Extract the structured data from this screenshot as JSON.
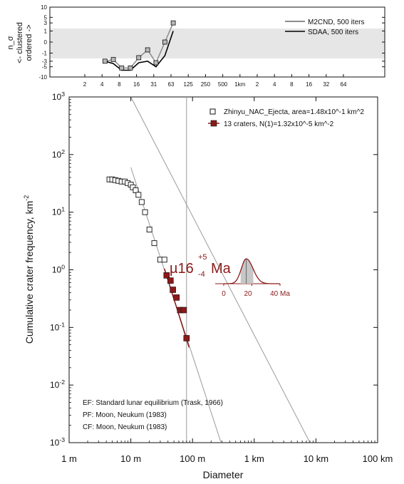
{
  "chart_data": [
    {
      "panel": "randomness",
      "type": "line",
      "ylabel": "n_σ\n<- clustered\nordered ->",
      "y_ticks": [
        "10",
        "5",
        "3",
        "1",
        "0",
        "-1",
        "-3",
        "-5",
        "-10"
      ],
      "x_ticks": [
        "2",
        "4",
        "8",
        "16",
        "31",
        "63",
        "125",
        "250",
        "500",
        "1km",
        "2",
        "4",
        "8",
        "16",
        "32",
        "64"
      ],
      "legend": [
        "M2CND, 500 iters",
        "SDAA, 500 iters"
      ],
      "series": [
        {
          "name": "M2CND, 500 iters",
          "diameters_m": [
            4.5,
            6.3,
            8.8,
            12.5,
            17.5,
            25,
            35,
            50,
            70
          ],
          "values": [
            -3.0,
            -2.5,
            -5.5,
            -5.5,
            -2.0,
            -0.5,
            -3.5,
            0,
            3.0
          ]
        },
        {
          "name": "SDAA, 500 iters",
          "diameters_m": [
            4.5,
            6.3,
            8.8,
            12.5,
            17.5,
            25,
            35,
            50,
            70
          ],
          "values": [
            -3.0,
            -3.8,
            -6.5,
            -6.5,
            -3.5,
            -3.0,
            -5.0,
            -1.5,
            1.0
          ]
        }
      ]
    },
    {
      "panel": "csfd",
      "type": "scatter",
      "xlabel": "Diameter",
      "ylabel": "Cumulative crater frequency, km-2",
      "xscale": "log",
      "yscale": "log",
      "x_ticks": [
        "1 m",
        "10 m",
        "100 m",
        "1 km",
        "10 km",
        "100 km"
      ],
      "y_ticks": [
        "10^3",
        "10^2",
        "10^1",
        "10^0",
        "10^-1",
        "10^-2",
        "10^-3"
      ],
      "xlim_m": [
        1,
        100000
      ],
      "ylim": [
        0.001,
        1000
      ],
      "legend": [
        "Zhinyu_NAC_Ejecta, area=1.48x10^-1 km^2",
        "13 craters, N(1)=1.32x10^-5 km^-2"
      ],
      "series": [
        {
          "name": "Zhinyu_NAC_Ejecta, area=1.48x10^-1 km^2",
          "marker": "open-square",
          "diameters_m": [
            4.5,
            5.0,
            5.6,
            6.3,
            7.1,
            8.0,
            8.9,
            10.0,
            10.8,
            12.0,
            13.3,
            15.0,
            17.0,
            20.0,
            24.0,
            30.0,
            35.0
          ],
          "frequency": [
            37,
            37,
            36,
            35,
            34,
            34,
            32,
            30,
            27,
            24,
            20,
            15,
            10,
            5,
            2.9,
            1.5,
            1.5
          ]
        },
        {
          "name": "13 craters, N(1)=1.32x10^-5 km^-2",
          "marker": "filled-square",
          "diameters_m": [
            38,
            44,
            48,
            55,
            63,
            72,
            80
          ],
          "frequency": [
            0.8,
            0.65,
            0.45,
            0.33,
            0.2,
            0.2,
            0.065
          ]
        }
      ],
      "fit_age": {
        "prefix": "µ",
        "value": "16",
        "plus": "+5",
        "minus": "-4",
        "unit": "Ma"
      },
      "age_pdf_axis": [
        "0",
        "20",
        "40 Ma"
      ],
      "reference_lines": [
        {
          "name": "EF: Standard lunar equilibrium (Trask, 1966)",
          "points_m_freq": [
            [
              10,
              1000
            ],
            [
              8000,
              0.001
            ]
          ]
        },
        {
          "name": "PF",
          "points_m_freq": [
            [
              10,
              60
            ],
            [
              290,
              0.001
            ]
          ]
        },
        {
          "name": "CF",
          "points_m_freq": [
            [
              80,
              1000
            ],
            [
              80,
              0.001
            ]
          ]
        }
      ],
      "footnotes": [
        "EF: Standard lunar equilibrium (Trask, 1966)",
        "PF: Moon, Neukum (1983)",
        "CF: Moon, Neukum (1983)"
      ]
    }
  ],
  "colors": {
    "axis": "#111111",
    "open_marker_fill": "#ffffff",
    "top_marker_fill": "#b8b8b8",
    "crater_fill": "#8b1a1a",
    "age_text": "#8b1a1a",
    "band": "#e6e6e6",
    "ref_line": "#9a9a9a",
    "sdaa_line": "#000000",
    "m2cnd_line": "#8c8c8c"
  }
}
